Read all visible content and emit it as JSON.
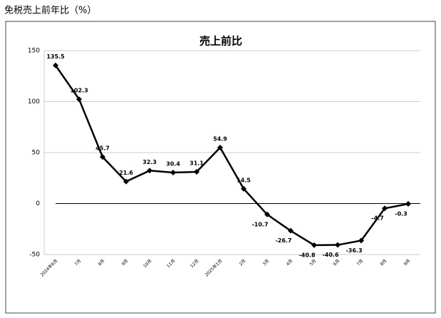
{
  "header": {
    "title": "免税売上前年比（%）"
  },
  "chart_data": {
    "type": "line",
    "title": "売上前比",
    "categories": [
      "2024年6月",
      "7月",
      "8月",
      "9月",
      "10月",
      "11月",
      "12月",
      "2025年1月",
      "2月",
      "3月",
      "4月",
      "5月",
      "6月",
      "7月",
      "8月",
      "9月"
    ],
    "series": [
      {
        "name": "売上前比",
        "color": "#000000",
        "values": [
          135.5,
          102.3,
          45.7,
          21.6,
          32.3,
          30.4,
          31.1,
          54.9,
          14.5,
          -10.7,
          -26.7,
          -40.8,
          -40.6,
          -36.3,
          -4.7,
          -0.3
        ]
      }
    ],
    "ylim": [
      -50,
      150
    ],
    "yticks": [
      -50,
      0,
      50,
      100,
      150
    ],
    "grid": true
  }
}
